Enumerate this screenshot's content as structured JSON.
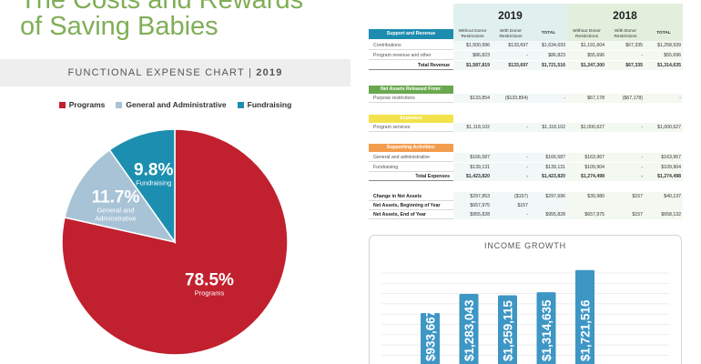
{
  "page": {
    "title_line1": "The Costs and Rewards",
    "title_line2": "of Saving Babies",
    "expense_band_label": "FUNCTIONAL EXPENSE CHART",
    "expense_band_sep": " | ",
    "expense_band_year": "2019"
  },
  "colors": {
    "programs": "#c1202e",
    "general": "#a8c3d6",
    "fundraising": "#1c8fb0",
    "bar": "#3e96c5",
    "title_green": "#7fae56"
  },
  "table": {
    "years": [
      "2019",
      "2018"
    ],
    "col_headers": [
      "Without Donor Restrictions",
      "With Donor Restrictions",
      "TOTAL",
      "Without Donor Restrictions",
      "With Donor Restrictions",
      "TOTAL"
    ],
    "sections": {
      "support": "Support and Revenue",
      "released": "Net Assets Released From:",
      "expenses": "Expenses",
      "supporting": "Supporting Activities:"
    },
    "rows": {
      "contributions": {
        "label": "Contributions",
        "v": [
          "$1,500,996",
          "$133,697",
          "$1,634,693",
          "$1,191,604",
          "$67,335",
          "$1,258,939"
        ]
      },
      "program_rev": {
        "label": "Program revenue and other",
        "v": [
          "$86,823",
          "-",
          "$86,823",
          "$55,696",
          "-",
          "$55,696"
        ]
      },
      "total_rev": {
        "label": "Total Revenue",
        "v": [
          "$1,587,819",
          "$133,697",
          "$1,721,516",
          "$1,247,300",
          "$67,335",
          "$1,314,635"
        ]
      },
      "purpose": {
        "label": "Purpose restrictions",
        "v": [
          "$133,854",
          "($133,854)",
          "-",
          "$67,178",
          "($67,178)",
          "-"
        ]
      },
      "program_services": {
        "label": "Program services",
        "v": [
          "$1,118,102",
          "-",
          "$1,118,102",
          "$1,000,627",
          "-",
          "$1,000,627"
        ]
      },
      "gen_admin": {
        "label": "General and administrative",
        "v": [
          "$166,587",
          "-",
          "$166,587",
          "$163,967",
          "-",
          "$163,967"
        ]
      },
      "fundraising": {
        "label": "Fundraising",
        "v": [
          "$139,131",
          "-",
          "$139,131",
          "$109,904",
          "-",
          "$109,904"
        ]
      },
      "total_exp": {
        "label": "Total Expenses",
        "v": [
          "$1,423,820",
          "-",
          "$1,423,820",
          "$1,274,498",
          "-",
          "$1,274,498"
        ]
      },
      "change": {
        "label": "Change in Net Assets",
        "v": [
          "$297,853",
          "($157)",
          "$297,696",
          "$39,980",
          "$157",
          "$40,137"
        ]
      },
      "beginning": {
        "label": "Net Assets, Beginning of Year",
        "v": [
          "$657,975",
          "$157",
          "",
          "",
          "",
          ""
        ]
      },
      "end": {
        "label": "Net Assets, End of Year",
        "v": [
          "$955,828",
          "-",
          "$955,828",
          "$657,975",
          "$157",
          "$658,132"
        ]
      }
    }
  },
  "chart_data": [
    {
      "type": "pie",
      "title": "",
      "legend": [
        "Programs",
        "General and Administrative",
        "Fundraising"
      ],
      "legend_position": "top-center",
      "slices": [
        {
          "name": "Programs",
          "value": 78.5,
          "label": "78.5%",
          "sublabel": "Programs"
        },
        {
          "name": "General and Administrative",
          "value": 11.7,
          "label": "11.7%",
          "sublabel": "General and Adminstrative"
        },
        {
          "name": "Fundraising",
          "value": 9.8,
          "label": "9.8%",
          "sublabel": "Fundraising"
        }
      ]
    },
    {
      "type": "bar",
      "title": "INCOME GROWTH",
      "categories": [
        "",
        "",
        "",
        "",
        ""
      ],
      "values": [
        933667,
        1283043,
        1259115,
        1314635,
        1721516
      ],
      "value_labels": [
        "$933,667",
        "$1,283,043",
        "$1,259,115",
        "$1,314,635",
        "$1,721,516"
      ],
      "ylim": [
        0,
        1900000
      ],
      "grid": true
    }
  ]
}
